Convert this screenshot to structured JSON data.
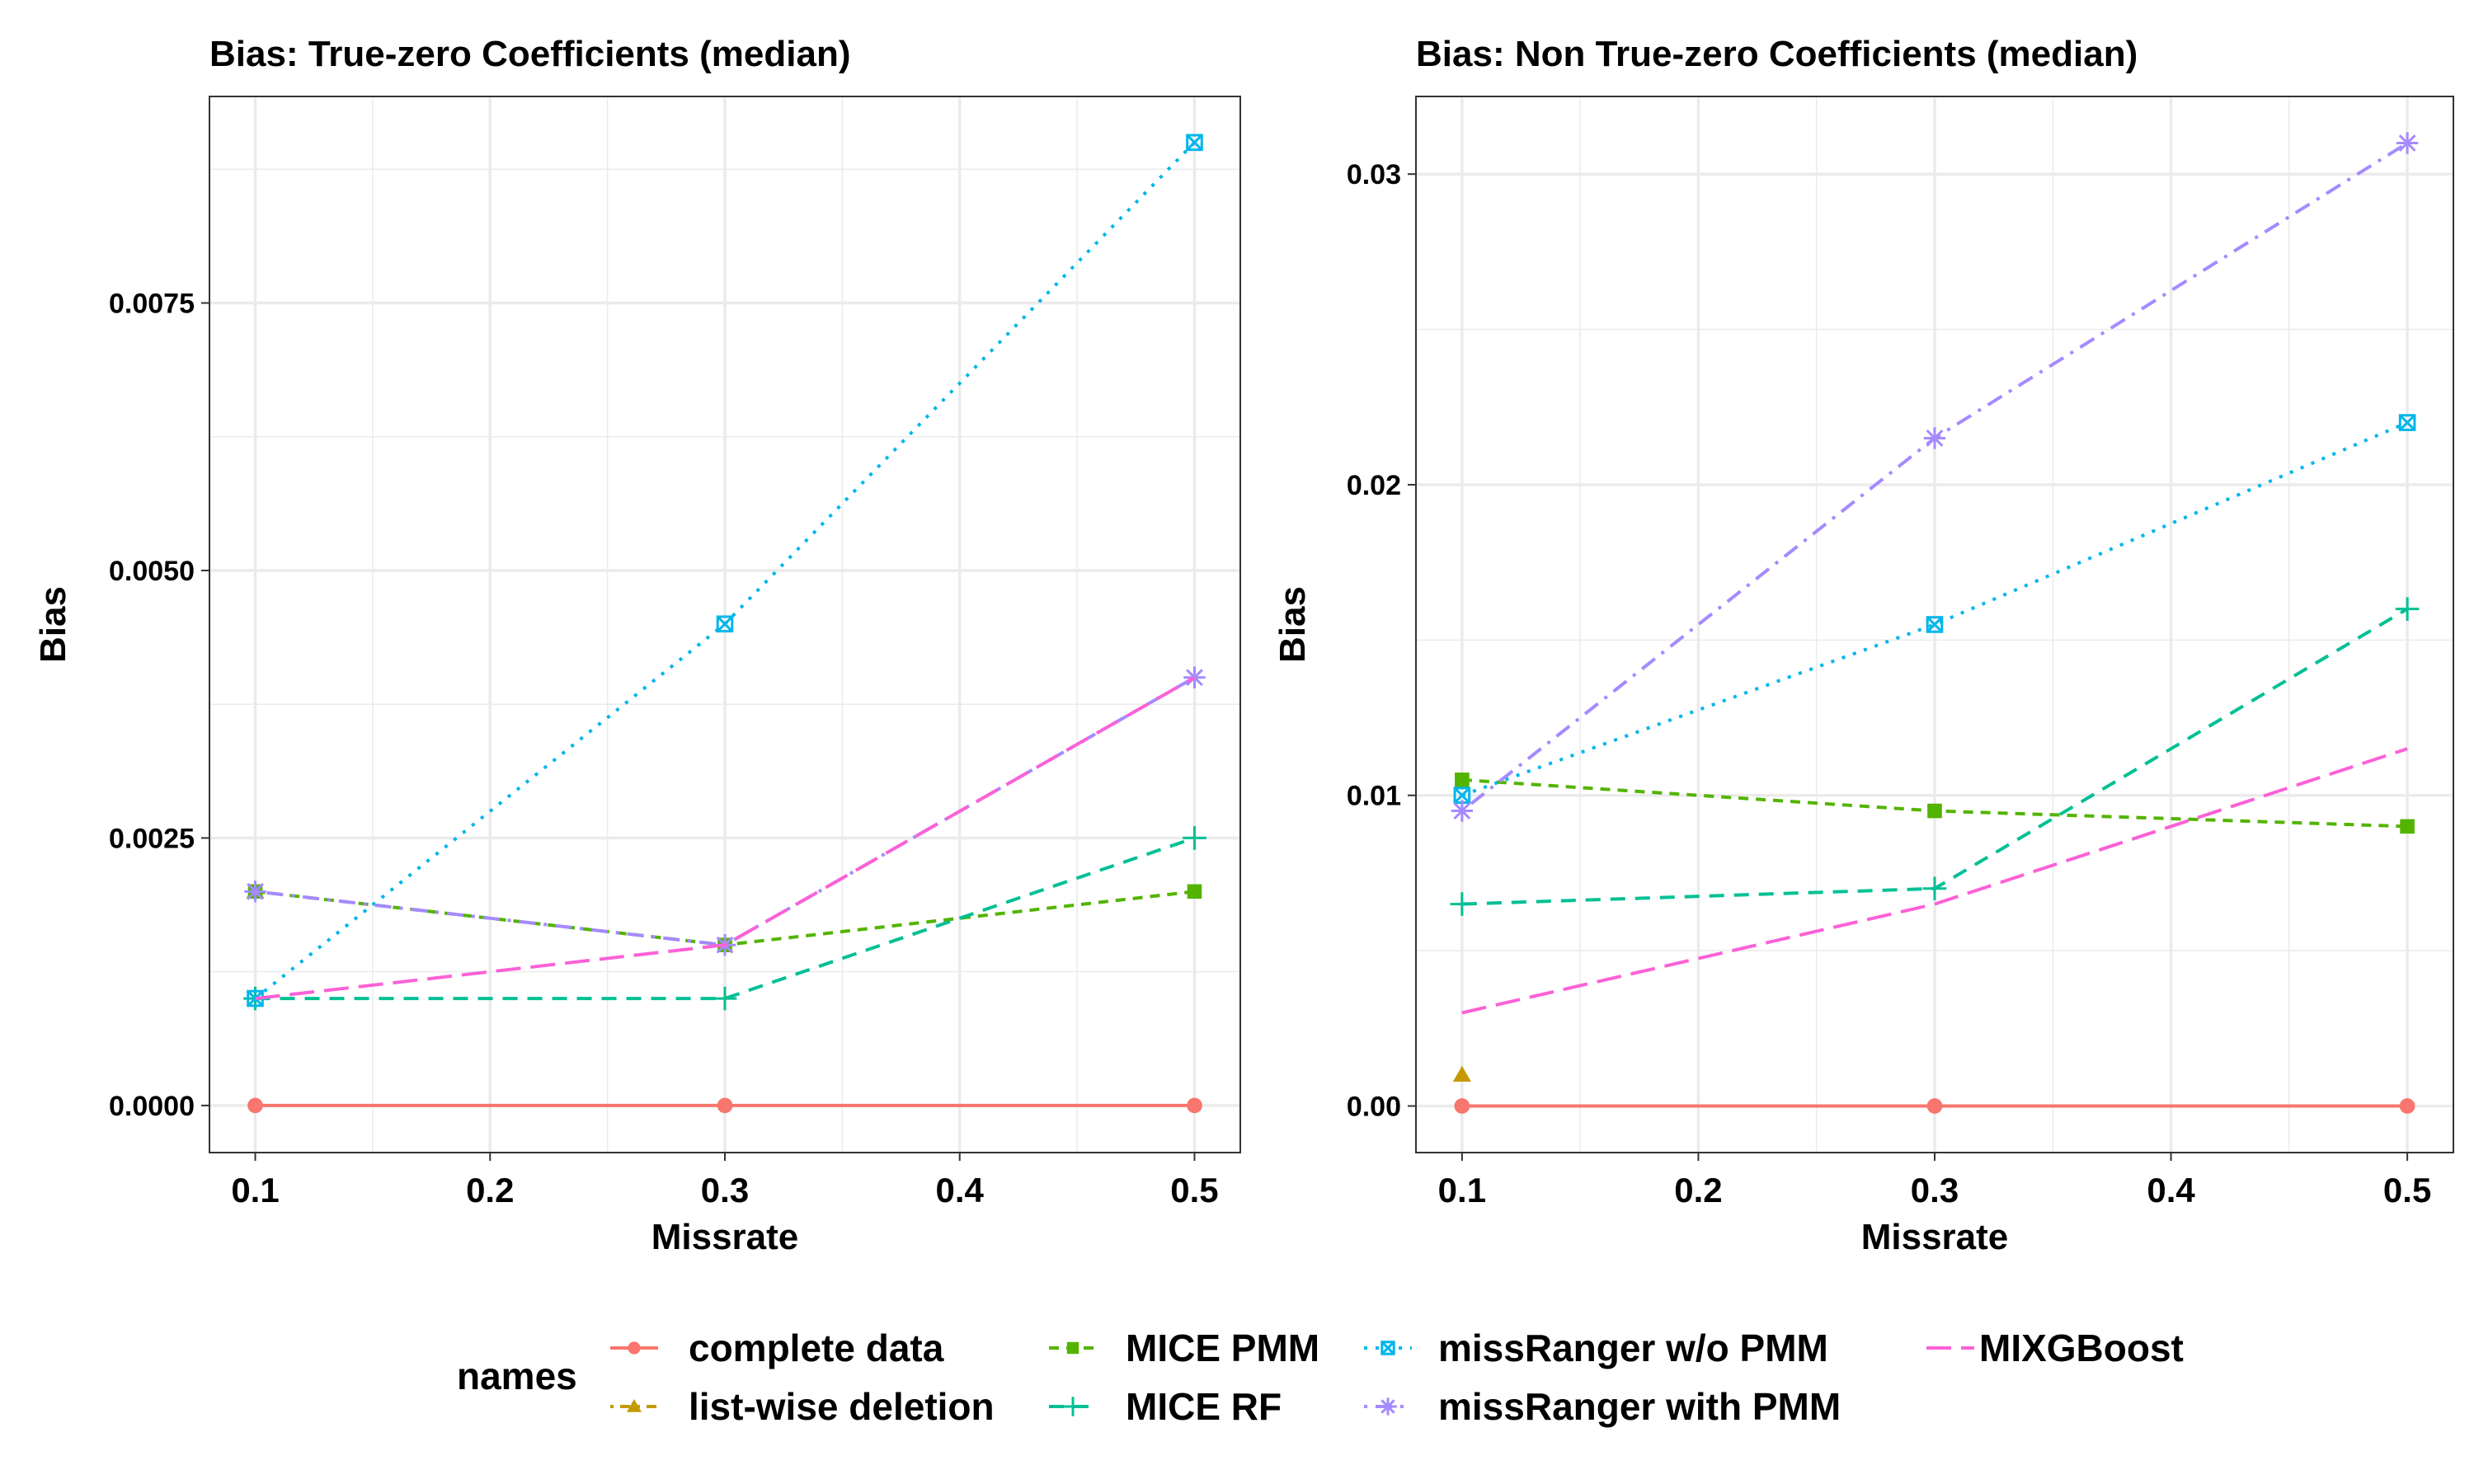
{
  "legend": {
    "title": "names",
    "position": "bottom",
    "entries": [
      {
        "name": "complete data",
        "color": "#F8766D",
        "shape": "circle",
        "linetype": "solid"
      },
      {
        "name": "list-wise deletion",
        "color": "#C49A00",
        "shape": "triangle",
        "linetype": "dotdash-short"
      },
      {
        "name": "MICE PMM",
        "color": "#53B400",
        "shape": "square",
        "linetype": "short-dash"
      },
      {
        "name": "MICE RF",
        "color": "#00C094",
        "shape": "plus",
        "linetype": "dashed"
      },
      {
        "name": "missRanger w/o PMM",
        "color": "#00B6EB",
        "shape": "boxed-x",
        "linetype": "dotted"
      },
      {
        "name": "missRanger with PMM",
        "color": "#A58AFF",
        "shape": "asterisk",
        "linetype": "dotdash"
      },
      {
        "name": "MIXGBoost",
        "color": "#FB61D7",
        "shape": "none",
        "linetype": "longdash"
      }
    ]
  },
  "chart_data": [
    {
      "type": "line",
      "title": "Bias: True-zero Coefficients (median)",
      "xlabel": "Missrate",
      "ylabel": "Bias",
      "x": [
        0.1,
        0.3,
        0.5
      ],
      "xticks": [
        "0.1",
        "0.2",
        "0.3",
        "0.4",
        "0.5"
      ],
      "yticks": [
        "0.0000",
        "0.0025",
        "0.0050",
        "0.0075"
      ],
      "xlim": [
        0.0805,
        0.5195
      ],
      "ylim": [
        -0.00044,
        0.00943
      ],
      "grid": true,
      "series": [
        {
          "name": "complete data",
          "values": [
            0,
            0,
            0
          ]
        },
        {
          "name": "list-wise deletion",
          "values": [
            0.002,
            null,
            null
          ]
        },
        {
          "name": "MICE PMM",
          "values": [
            0.002,
            0.0015,
            0.002
          ]
        },
        {
          "name": "MICE RF",
          "values": [
            0.001,
            0.001,
            0.0025
          ]
        },
        {
          "name": "missRanger w/o PMM",
          "values": [
            0.001,
            0.0045,
            0.009
          ]
        },
        {
          "name": "missRanger with PMM",
          "values": [
            0.002,
            0.0015,
            0.004
          ]
        },
        {
          "name": "MIXGBoost",
          "values": [
            0.001,
            0.0015,
            0.004
          ]
        }
      ]
    },
    {
      "type": "line",
      "title": "Bias: Non True-zero Coefficients (median)",
      "xlabel": "Missrate",
      "ylabel": "Bias",
      "x": [
        0.1,
        0.3,
        0.5
      ],
      "xticks": [
        "0.1",
        "0.2",
        "0.3",
        "0.4",
        "0.5"
      ],
      "yticks": [
        "0.00",
        "0.01",
        "0.02",
        "0.03"
      ],
      "xlim": [
        0.0805,
        0.5195
      ],
      "ylim": [
        -0.0015,
        0.0325
      ],
      "grid": true,
      "series": [
        {
          "name": "complete data",
          "values": [
            0,
            0,
            0
          ]
        },
        {
          "name": "list-wise deletion",
          "values": [
            0.001,
            null,
            null
          ]
        },
        {
          "name": "MICE PMM",
          "values": [
            0.0105,
            0.0095,
            0.009
          ]
        },
        {
          "name": "MICE RF",
          "values": [
            0.0065,
            0.007,
            0.016
          ]
        },
        {
          "name": "missRanger w/o PMM",
          "values": [
            0.01,
            0.0155,
            0.022
          ]
        },
        {
          "name": "missRanger with PMM",
          "values": [
            0.0095,
            0.0215,
            0.031
          ]
        },
        {
          "name": "MIXGBoost",
          "values": [
            0.003,
            0.0065,
            0.0115
          ]
        }
      ]
    }
  ]
}
